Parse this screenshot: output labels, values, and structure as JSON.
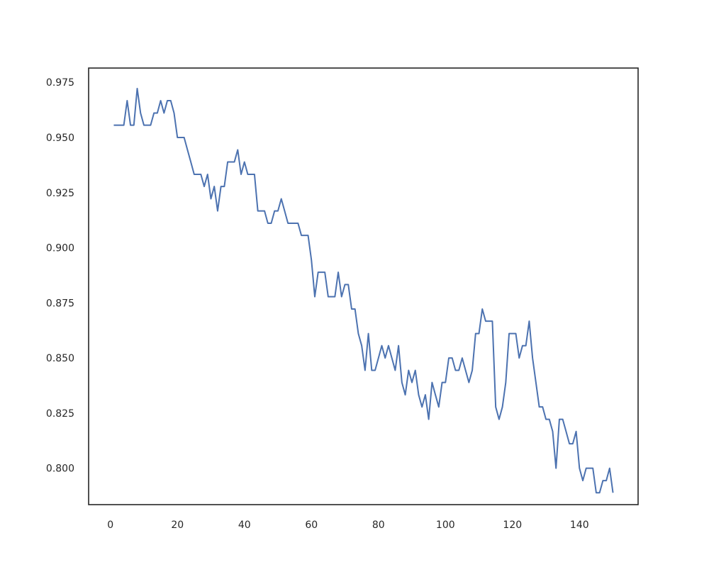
{
  "chart_data": {
    "type": "line",
    "title": "",
    "xlabel": "",
    "ylabel": "",
    "xlim": [
      -6.5,
      157.5
    ],
    "ylim": [
      0.7835,
      0.9815
    ],
    "x_ticks": [
      0,
      20,
      40,
      60,
      80,
      100,
      120,
      140
    ],
    "y_ticks": [
      0.8,
      0.825,
      0.85,
      0.875,
      0.9,
      0.925,
      0.95,
      0.975
    ],
    "x_tick_labels": [
      "0",
      "20",
      "40",
      "60",
      "80",
      "100",
      "120",
      "140"
    ],
    "y_tick_labels": [
      "0.800",
      "0.825",
      "0.850",
      "0.875",
      "0.900",
      "0.925",
      "0.950",
      "0.975"
    ],
    "grid": false,
    "legend": "none",
    "colors": {
      "line": "#4c72b0",
      "axes": "#262626",
      "background": "#ffffff"
    },
    "series": [
      {
        "x": [
          1,
          2,
          3,
          4,
          5,
          6,
          7,
          8,
          9,
          10,
          11,
          12,
          13,
          14,
          15,
          16,
          17,
          18,
          19,
          20,
          21,
          22,
          23,
          24,
          25,
          26,
          27,
          28,
          29,
          30,
          31,
          32,
          33,
          34,
          35,
          36,
          37,
          38,
          39,
          40,
          41,
          42,
          43,
          44,
          45,
          46,
          47,
          48,
          49,
          50,
          51,
          52,
          53,
          54,
          55,
          56,
          57,
          58,
          59,
          60,
          61,
          62,
          63,
          64,
          65,
          66,
          67,
          68,
          69,
          70,
          71,
          72,
          73,
          74,
          75,
          76,
          77,
          78,
          79,
          80,
          81,
          82,
          83,
          84,
          85,
          86,
          87,
          88,
          89,
          90,
          91,
          92,
          93,
          94,
          95,
          96,
          97,
          98,
          99,
          100,
          101,
          102,
          103,
          104,
          105,
          106,
          107,
          108,
          109,
          110,
          111,
          112,
          113,
          114,
          115,
          116,
          117,
          118,
          119,
          120,
          121,
          122,
          123,
          124,
          125,
          126,
          127,
          128,
          129,
          130,
          131,
          132,
          133,
          134,
          135,
          136,
          137,
          138,
          139,
          140,
          141,
          142,
          143,
          144,
          145,
          146,
          147,
          148,
          149,
          150
        ],
        "values": [
          0.9556,
          0.9556,
          0.9556,
          0.9556,
          0.9667,
          0.9556,
          0.9556,
          0.9722,
          0.9611,
          0.9556,
          0.9556,
          0.9556,
          0.9611,
          0.9611,
          0.9667,
          0.9611,
          0.9667,
          0.9667,
          0.9611,
          0.95,
          0.95,
          0.95,
          0.9444,
          0.9389,
          0.9333,
          0.9333,
          0.9333,
          0.9278,
          0.9333,
          0.9222,
          0.9278,
          0.9167,
          0.9278,
          0.9278,
          0.9389,
          0.9389,
          0.9389,
          0.9444,
          0.9333,
          0.9389,
          0.9333,
          0.9333,
          0.9333,
          0.9167,
          0.9167,
          0.9167,
          0.9111,
          0.9111,
          0.9167,
          0.9167,
          0.9222,
          0.9167,
          0.9111,
          0.9111,
          0.9111,
          0.9111,
          0.9056,
          0.9056,
          0.9056,
          0.8944,
          0.8778,
          0.8889,
          0.8889,
          0.8889,
          0.8778,
          0.8778,
          0.8778,
          0.8889,
          0.8778,
          0.8833,
          0.8833,
          0.8722,
          0.8722,
          0.8611,
          0.8556,
          0.8444,
          0.8611,
          0.8444,
          0.8444,
          0.85,
          0.8556,
          0.85,
          0.8556,
          0.85,
          0.8444,
          0.8556,
          0.8389,
          0.8333,
          0.8444,
          0.8389,
          0.8444,
          0.8333,
          0.8278,
          0.8333,
          0.8222,
          0.8389,
          0.8333,
          0.8278,
          0.8389,
          0.8389,
          0.85,
          0.85,
          0.8444,
          0.8444,
          0.85,
          0.8444,
          0.8389,
          0.8444,
          0.8611,
          0.8611,
          0.8722,
          0.8667,
          0.8667,
          0.8667,
          0.8278,
          0.8222,
          0.8278,
          0.8389,
          0.8611,
          0.8611,
          0.8611,
          0.85,
          0.8556,
          0.8556,
          0.8667,
          0.85,
          0.8389,
          0.8278,
          0.8278,
          0.8222,
          0.8222,
          0.8167,
          0.8,
          0.8222,
          0.8222,
          0.8167,
          0.8111,
          0.8111,
          0.8167,
          0.8,
          0.7944,
          0.8,
          0.8,
          0.8,
          0.7889,
          0.7889,
          0.7944,
          0.7944,
          0.8,
          0.7889
        ]
      }
    ]
  }
}
